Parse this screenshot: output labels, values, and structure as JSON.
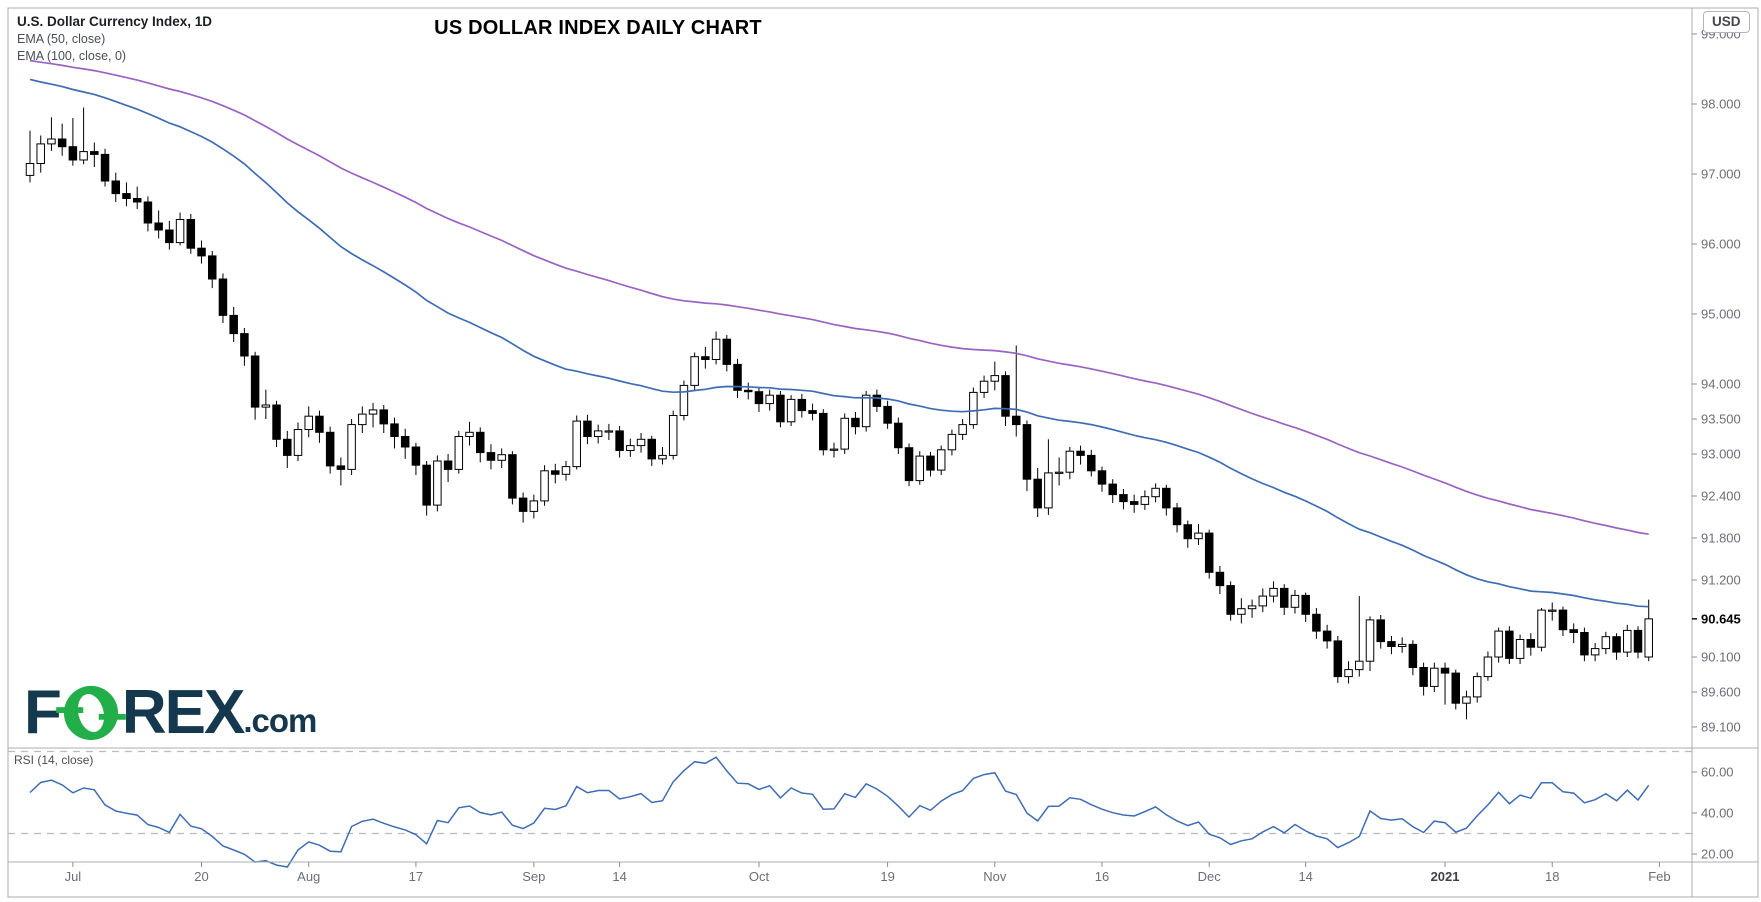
{
  "header": {
    "symbol_title": "U.S. Dollar Currency Index, 1D",
    "ema50_label": "EMA (50, close)",
    "ema100_label": "EMA (100, close, 0)"
  },
  "title": "US DOLLAR INDEX DAILY CHART",
  "currency_badge": "USD",
  "watermark": {
    "part1": "F",
    "part2": "REX",
    "dotcom": ".com"
  },
  "price_axis": {
    "ticks": [
      "99.000",
      "98.000",
      "97.000",
      "96.000",
      "95.000",
      "94.000",
      "93.500",
      "93.000",
      "92.400",
      "91.800",
      "91.200",
      "90.100",
      "89.600",
      "89.100"
    ],
    "current_price": "90.645"
  },
  "time_axis": {
    "ticks": [
      {
        "label": "Jul",
        "i": 4,
        "bold": false
      },
      {
        "label": "20",
        "i": 16,
        "bold": false
      },
      {
        "label": "Aug",
        "i": 26,
        "bold": false
      },
      {
        "label": "17",
        "i": 36,
        "bold": false
      },
      {
        "label": "Sep",
        "i": 47,
        "bold": false
      },
      {
        "label": "14",
        "i": 55,
        "bold": false
      },
      {
        "label": "Oct",
        "i": 68,
        "bold": false
      },
      {
        "label": "19",
        "i": 80,
        "bold": false
      },
      {
        "label": "Nov",
        "i": 90,
        "bold": false
      },
      {
        "label": "16",
        "i": 100,
        "bold": false
      },
      {
        "label": "Dec",
        "i": 110,
        "bold": false
      },
      {
        "label": "14",
        "i": 119,
        "bold": false
      },
      {
        "label": "2021",
        "i": 132,
        "bold": true
      },
      {
        "label": "18",
        "i": 142,
        "bold": false
      },
      {
        "label": "Feb",
        "i": 152,
        "bold": false
      }
    ]
  },
  "rsi_pane": {
    "label": "RSI (14, close)",
    "ticks": [
      "60.00",
      "40.00",
      "20.00"
    ],
    "levels": [
      70,
      30
    ]
  },
  "colors": {
    "ema50": "#3e6db4",
    "ema100": "#9a63c3",
    "rsi_line": "#3e6db4",
    "candle_up_fill": "#ffffff",
    "candle_down_fill": "#000000",
    "candle_stroke": "#000000",
    "pane_border": "#aaacb2",
    "tick_mark": "#8a8d94",
    "dashed_level": "#bcbcbc",
    "logo_navy": "#14384d",
    "logo_green": "#22ae49"
  },
  "chart_data": {
    "type": "candlestick",
    "symbol": "U.S. Dollar Currency Index",
    "timeframe": "1D",
    "title": "US DOLLAR INDEX DAILY CHART",
    "price_range": [
      88.8,
      99.4
    ],
    "last_price": 90.645,
    "candles": [
      [
        96.98,
        97.62,
        96.88,
        97.15
      ],
      [
        97.15,
        97.55,
        97.02,
        97.43
      ],
      [
        97.43,
        97.81,
        97.33,
        97.5
      ],
      [
        97.5,
        97.72,
        97.26,
        97.39
      ],
      [
        97.39,
        97.8,
        97.12,
        97.2
      ],
      [
        97.2,
        97.95,
        97.14,
        97.32
      ],
      [
        97.32,
        97.45,
        97.1,
        97.28
      ],
      [
        97.28,
        97.36,
        96.82,
        96.9
      ],
      [
        96.9,
        97.02,
        96.6,
        96.72
      ],
      [
        96.72,
        96.88,
        96.54,
        96.65
      ],
      [
        96.65,
        96.82,
        96.5,
        96.6
      ],
      [
        96.6,
        96.68,
        96.18,
        96.3
      ],
      [
        96.3,
        96.48,
        96.08,
        96.2
      ],
      [
        96.2,
        96.33,
        95.92,
        96.02
      ],
      [
        96.02,
        96.45,
        95.98,
        96.35
      ],
      [
        96.35,
        96.43,
        95.86,
        95.94
      ],
      [
        95.94,
        96.05,
        95.72,
        95.83
      ],
      [
        95.83,
        95.9,
        95.37,
        95.5
      ],
      [
        95.5,
        95.58,
        94.87,
        94.98
      ],
      [
        94.98,
        95.1,
        94.6,
        94.72
      ],
      [
        94.72,
        94.8,
        94.26,
        94.4
      ],
      [
        94.4,
        94.46,
        93.49,
        93.67
      ],
      [
        93.67,
        93.92,
        93.5,
        93.7
      ],
      [
        93.7,
        93.76,
        93.1,
        93.21
      ],
      [
        93.21,
        93.33,
        92.8,
        92.98
      ],
      [
        92.98,
        93.45,
        92.9,
        93.35
      ],
      [
        93.35,
        93.68,
        93.24,
        93.54
      ],
      [
        93.54,
        93.62,
        93.16,
        93.31
      ],
      [
        93.31,
        93.39,
        92.72,
        92.83
      ],
      [
        92.83,
        92.95,
        92.55,
        92.78
      ],
      [
        92.78,
        93.5,
        92.7,
        93.42
      ],
      [
        93.42,
        93.68,
        93.3,
        93.57
      ],
      [
        93.57,
        93.73,
        93.38,
        93.63
      ],
      [
        93.63,
        93.7,
        93.3,
        93.43
      ],
      [
        93.43,
        93.52,
        93.08,
        93.25
      ],
      [
        93.25,
        93.36,
        92.93,
        93.1
      ],
      [
        93.1,
        93.16,
        92.7,
        92.84
      ],
      [
        92.84,
        92.9,
        92.12,
        92.27
      ],
      [
        92.27,
        92.98,
        92.18,
        92.9
      ],
      [
        92.9,
        93.0,
        92.6,
        92.78
      ],
      [
        92.78,
        93.33,
        92.72,
        93.25
      ],
      [
        93.25,
        93.46,
        93.12,
        93.31
      ],
      [
        93.31,
        93.38,
        92.88,
        93.02
      ],
      [
        93.02,
        93.14,
        92.78,
        92.91
      ],
      [
        92.91,
        93.08,
        92.8,
        92.99
      ],
      [
        92.99,
        93.04,
        92.28,
        92.37
      ],
      [
        92.37,
        92.45,
        92.02,
        92.18
      ],
      [
        92.18,
        92.42,
        92.08,
        92.33
      ],
      [
        92.33,
        92.84,
        92.26,
        92.76
      ],
      [
        92.76,
        92.86,
        92.58,
        92.71
      ],
      [
        92.71,
        92.9,
        92.62,
        92.82
      ],
      [
        92.82,
        93.55,
        92.78,
        93.47
      ],
      [
        93.47,
        93.56,
        93.14,
        93.25
      ],
      [
        93.25,
        93.42,
        93.15,
        93.33
      ],
      [
        93.33,
        93.43,
        93.2,
        93.33
      ],
      [
        93.33,
        93.4,
        92.95,
        93.05
      ],
      [
        93.05,
        93.22,
        92.96,
        93.12
      ],
      [
        93.12,
        93.3,
        93.02,
        93.21
      ],
      [
        93.21,
        93.26,
        92.83,
        92.93
      ],
      [
        92.93,
        93.1,
        92.85,
        92.98
      ],
      [
        92.98,
        93.62,
        92.92,
        93.55
      ],
      [
        93.55,
        94.05,
        93.48,
        93.98
      ],
      [
        93.98,
        94.45,
        93.9,
        94.39
      ],
      [
        94.39,
        94.53,
        94.22,
        94.35
      ],
      [
        94.35,
        94.75,
        94.28,
        94.64
      ],
      [
        94.64,
        94.7,
        94.18,
        94.28
      ],
      [
        94.28,
        94.36,
        93.8,
        93.91
      ],
      [
        93.91,
        94.02,
        93.78,
        93.89
      ],
      [
        93.89,
        93.95,
        93.6,
        93.72
      ],
      [
        93.72,
        93.92,
        93.62,
        93.84
      ],
      [
        93.84,
        93.9,
        93.38,
        93.46
      ],
      [
        93.46,
        93.84,
        93.4,
        93.78
      ],
      [
        93.78,
        93.86,
        93.52,
        93.62
      ],
      [
        93.62,
        93.72,
        93.48,
        93.58
      ],
      [
        93.58,
        93.64,
        92.98,
        93.06
      ],
      [
        93.06,
        93.16,
        92.95,
        93.07
      ],
      [
        93.07,
        93.58,
        93.0,
        93.51
      ],
      [
        93.51,
        93.6,
        93.28,
        93.39
      ],
      [
        93.39,
        93.9,
        93.32,
        93.84
      ],
      [
        93.84,
        93.92,
        93.6,
        93.68
      ],
      [
        93.68,
        93.76,
        93.36,
        93.44
      ],
      [
        93.44,
        93.52,
        93.0,
        93.09
      ],
      [
        93.09,
        93.15,
        92.54,
        92.62
      ],
      [
        92.62,
        93.04,
        92.56,
        92.97
      ],
      [
        92.97,
        93.03,
        92.68,
        92.77
      ],
      [
        92.77,
        93.12,
        92.7,
        93.06
      ],
      [
        93.06,
        93.35,
        92.98,
        93.28
      ],
      [
        93.28,
        93.5,
        93.2,
        93.42
      ],
      [
        93.42,
        93.95,
        93.36,
        93.88
      ],
      [
        93.88,
        94.12,
        93.8,
        94.04
      ],
      [
        94.04,
        94.32,
        93.91,
        94.12
      ],
      [
        94.12,
        94.18,
        93.4,
        93.54
      ],
      [
        93.54,
        94.55,
        93.25,
        93.42
      ],
      [
        93.42,
        93.48,
        92.47,
        92.64
      ],
      [
        92.64,
        92.8,
        92.1,
        92.23
      ],
      [
        92.23,
        93.21,
        92.13,
        92.73
      ],
      [
        92.73,
        92.95,
        92.55,
        92.74
      ],
      [
        92.74,
        93.1,
        92.64,
        93.04
      ],
      [
        93.04,
        93.12,
        92.85,
        92.98
      ],
      [
        92.98,
        93.06,
        92.68,
        92.76
      ],
      [
        92.76,
        92.82,
        92.46,
        92.57
      ],
      [
        92.57,
        92.64,
        92.3,
        92.42
      ],
      [
        92.42,
        92.5,
        92.21,
        92.32
      ],
      [
        92.32,
        92.42,
        92.16,
        92.28
      ],
      [
        92.28,
        92.48,
        92.2,
        92.39
      ],
      [
        92.39,
        92.58,
        92.31,
        92.51
      ],
      [
        92.51,
        92.56,
        92.12,
        92.23
      ],
      [
        92.23,
        92.3,
        91.88,
        91.99
      ],
      [
        91.99,
        92.05,
        91.66,
        91.79
      ],
      [
        91.79,
        92.0,
        91.7,
        91.87
      ],
      [
        91.87,
        91.92,
        91.22,
        91.31
      ],
      [
        91.31,
        91.4,
        91.0,
        91.12
      ],
      [
        91.12,
        91.18,
        90.62,
        90.71
      ],
      [
        90.71,
        90.94,
        90.58,
        90.79
      ],
      [
        90.79,
        90.92,
        90.66,
        90.83
      ],
      [
        90.83,
        91.08,
        90.74,
        90.97
      ],
      [
        90.97,
        91.18,
        90.88,
        91.08
      ],
      [
        91.08,
        91.14,
        90.7,
        90.81
      ],
      [
        90.81,
        91.06,
        90.72,
        90.98
      ],
      [
        90.98,
        91.02,
        90.6,
        90.71
      ],
      [
        90.71,
        90.8,
        90.36,
        90.47
      ],
      [
        90.47,
        90.56,
        90.22,
        90.33
      ],
      [
        90.33,
        90.4,
        89.73,
        89.82
      ],
      [
        89.82,
        90.04,
        89.72,
        89.92
      ],
      [
        89.92,
        90.97,
        89.82,
        90.04
      ],
      [
        90.04,
        90.68,
        89.9,
        90.63
      ],
      [
        90.63,
        90.7,
        90.22,
        90.32
      ],
      [
        90.32,
        90.4,
        90.14,
        90.25
      ],
      [
        90.25,
        90.38,
        90.16,
        90.28
      ],
      [
        90.28,
        90.34,
        89.84,
        89.95
      ],
      [
        89.95,
        90.02,
        89.55,
        89.68
      ],
      [
        89.68,
        90.02,
        89.6,
        89.94
      ],
      [
        89.94,
        90.02,
        89.42,
        89.87
      ],
      [
        89.87,
        89.92,
        89.35,
        89.44
      ],
      [
        89.44,
        89.62,
        89.21,
        89.53
      ],
      [
        89.53,
        89.88,
        89.45,
        89.82
      ],
      [
        89.82,
        90.18,
        89.76,
        90.1
      ],
      [
        90.1,
        90.52,
        90.02,
        90.47
      ],
      [
        90.47,
        90.54,
        90.0,
        90.08
      ],
      [
        90.08,
        90.42,
        90.0,
        90.35
      ],
      [
        90.35,
        90.44,
        90.12,
        90.24
      ],
      [
        90.24,
        90.8,
        90.18,
        90.77
      ],
      [
        90.77,
        90.88,
        90.62,
        90.77
      ],
      [
        90.77,
        90.82,
        90.4,
        90.49
      ],
      [
        90.49,
        90.58,
        90.3,
        90.45
      ],
      [
        90.45,
        90.52,
        90.04,
        90.13
      ],
      [
        90.13,
        90.3,
        90.04,
        90.22
      ],
      [
        90.22,
        90.46,
        90.14,
        90.39
      ],
      [
        90.39,
        90.44,
        90.06,
        90.17
      ],
      [
        90.17,
        90.56,
        90.1,
        90.48
      ],
      [
        90.48,
        90.54,
        90.08,
        90.17
      ],
      [
        90.1,
        90.92,
        90.04,
        90.645
      ]
    ],
    "overlays": [
      {
        "name": "EMA 50",
        "type": "ema",
        "period": 50,
        "seed": 98.4,
        "color": "#3e6db4"
      },
      {
        "name": "EMA 100",
        "type": "ema",
        "period": 100,
        "seed": 98.65,
        "color": "#9a63c3"
      }
    ],
    "rsi": {
      "period": 14,
      "seed_avg_gain": 0.1,
      "seed_avg_loss": 0.1,
      "levels": [
        70,
        30
      ],
      "color": "#3e6db4"
    }
  }
}
